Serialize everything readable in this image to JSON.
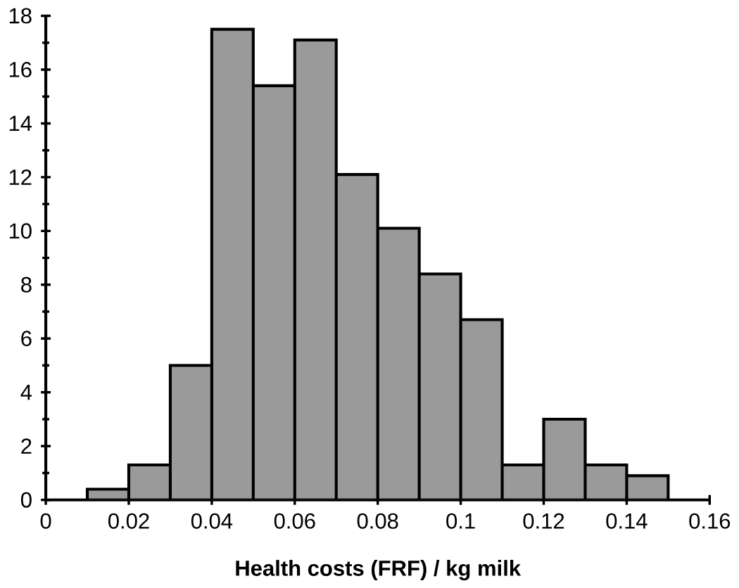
{
  "chart_data": {
    "type": "histogram",
    "xlabel": "Health costs (FRF) / kg milk",
    "bins": [
      0.01,
      0.02,
      0.03,
      0.04,
      0.05,
      0.06,
      0.07,
      0.08,
      0.09,
      0.1,
      0.11,
      0.12,
      0.13,
      0.14,
      0.15
    ],
    "values": [
      0.4,
      1.3,
      5,
      17.5,
      15.4,
      17.1,
      12.1,
      10.1,
      8.4,
      6.7,
      1.3,
      3,
      1.3,
      0.9
    ],
    "color": "#9a9a9a",
    "xlim": [
      0,
      0.16
    ],
    "ylim": [
      0,
      18
    ],
    "xticks": [
      0,
      0.02,
      0.04,
      0.06,
      0.08,
      0.1,
      0.12,
      0.14,
      0.16
    ],
    "yticks": [
      0,
      2,
      4,
      6,
      8,
      10,
      12,
      14,
      16,
      18
    ],
    "grid": false
  }
}
